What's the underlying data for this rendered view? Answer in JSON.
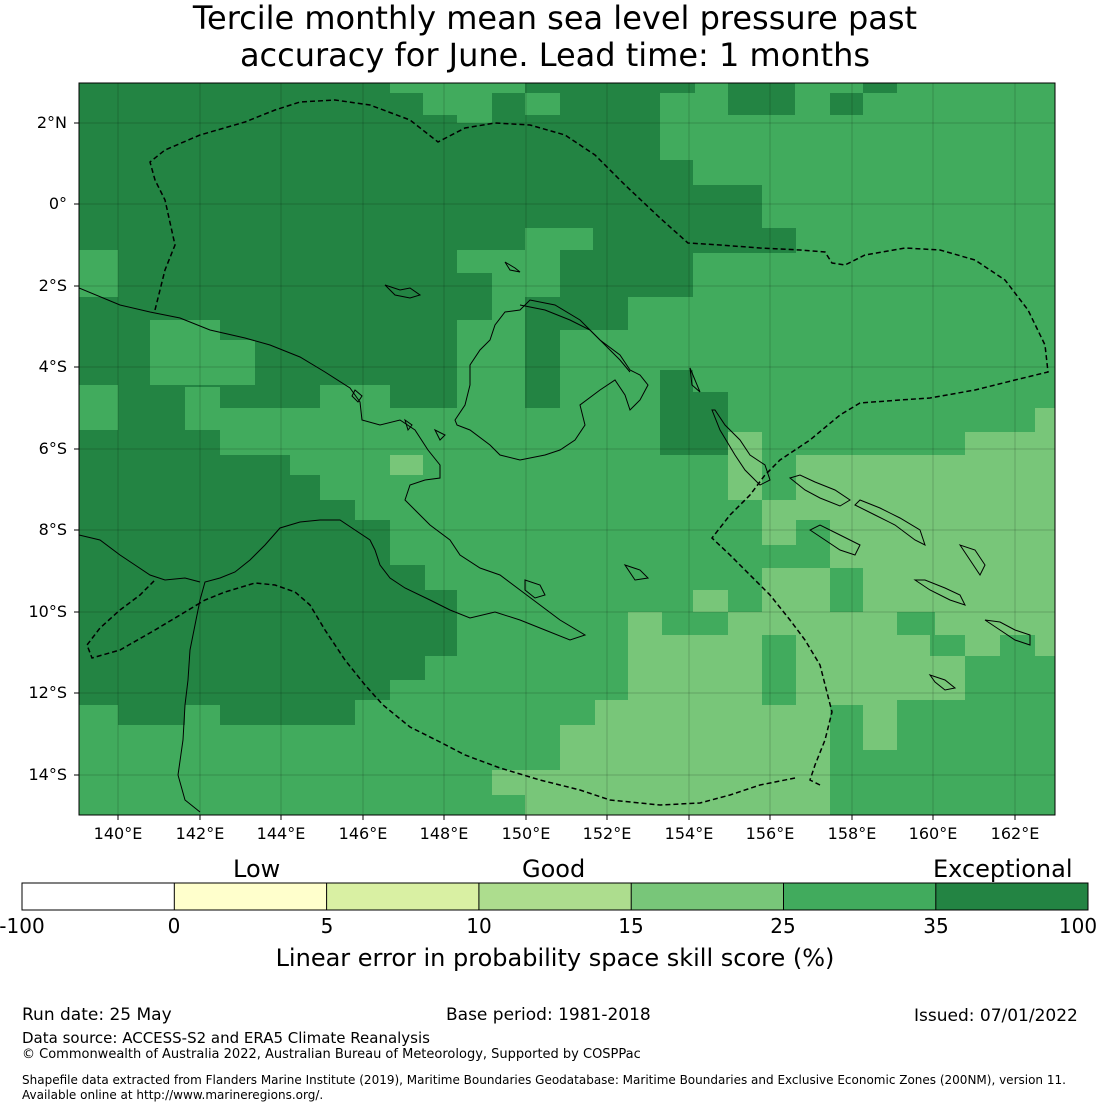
{
  "title": {
    "line1": "Tercile monthly mean sea level pressure past",
    "line2": "accuracy for June. Lead time: 1 months"
  },
  "map": {
    "lat_labels": [
      "2°N",
      "0°",
      "2°S",
      "4°S",
      "6°S",
      "8°S",
      "10°S",
      "12°S",
      "14°S"
    ],
    "lon_labels": [
      "140°E",
      "142°E",
      "144°E",
      "146°E",
      "148°E",
      "150°E",
      "152°E",
      "154°E",
      "156°E",
      "158°E",
      "160°E",
      "162°E"
    ],
    "lon_range": [
      139.1,
      163.0
    ],
    "lat_range": [
      -15.0,
      3.0
    ]
  },
  "colorbar": {
    "category_labels": [
      "Low",
      "Good",
      "Exceptional"
    ],
    "ticks": [
      "-100",
      "0",
      "5",
      "10",
      "15",
      "25",
      "35",
      "100"
    ],
    "colors": [
      "#ffffff",
      "#ffffcc",
      "#d9f0a3",
      "#addd8e",
      "#78c679",
      "#41ab5d",
      "#238443"
    ],
    "label": "Linear error in probability space skill score (%)"
  },
  "footer": {
    "run_date": "Run date: 25 May",
    "base_period": "Base period: 1981-2018",
    "issued": "Issued: 07/01/2022",
    "data_source": "Data source: ACCESS-S2 and ERA5 Climate Reanalysis",
    "copyright": "© Commonwealth of Australia 2022, Australian Bureau of Meteorology, Supported by COSPPac",
    "shapefile_1": "Shapefile data extracted from Flanders Marine Institute (2019), Maritime Boundaries Geodatabase: Maritime Boundaries and Exclusive Economic Zones (200NM), version 11.",
    "shapefile_2": "Available online at http://www.marineregions.org/."
  }
}
